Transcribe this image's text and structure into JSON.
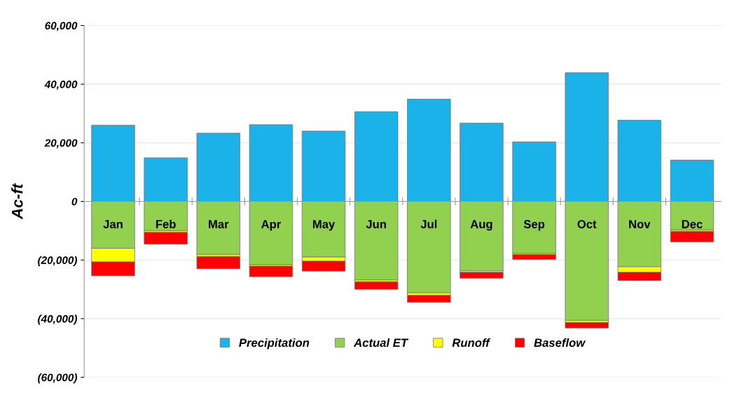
{
  "chart_data": {
    "type": "bar",
    "stacked": true,
    "ylabel": "Ac-ft",
    "categories": [
      "Jan",
      "Feb",
      "Mar",
      "Apr",
      "May",
      "Jun",
      "Jul",
      "Aug",
      "Sep",
      "Oct",
      "Nov",
      "Dec"
    ],
    "series": [
      {
        "name": "Precipitation",
        "color": "#1ab2e8",
        "values": [
          26000,
          14900,
          23300,
          26200,
          24000,
          30600,
          34900,
          26700,
          20300,
          43900,
          27700,
          14100
        ]
      },
      {
        "name": "Actual ET",
        "color": "#92d050",
        "values": [
          -16000,
          -10000,
          -18100,
          -21600,
          -19000,
          -26800,
          -31200,
          -23700,
          -17700,
          -40600,
          -22300,
          -9700
        ]
      },
      {
        "name": "Runoff",
        "color": "#ffff00",
        "values": [
          -4600,
          -500,
          -700,
          -500,
          -1400,
          -600,
          -800,
          -500,
          -400,
          -700,
          -1900,
          -500
        ]
      },
      {
        "name": "Baseflow",
        "color": "#ff0000",
        "values": [
          -4800,
          -4100,
          -4200,
          -3600,
          -3400,
          -2600,
          -2400,
          -2000,
          -1700,
          -1900,
          -2800,
          -3600
        ]
      }
    ],
    "ylim": [
      -60000,
      60000
    ],
    "yticks": [
      {
        "value": -60000,
        "label": "(60,000)"
      },
      {
        "value": -40000,
        "label": "(40,000)"
      },
      {
        "value": -20000,
        "label": "(20,000)"
      },
      0,
      {
        "value": 20000,
        "label": "20,000"
      },
      {
        "value": 40000,
        "label": "40,000"
      },
      {
        "value": 60000,
        "label": "60,000"
      }
    ],
    "grid": "y",
    "legend": "bottom"
  }
}
